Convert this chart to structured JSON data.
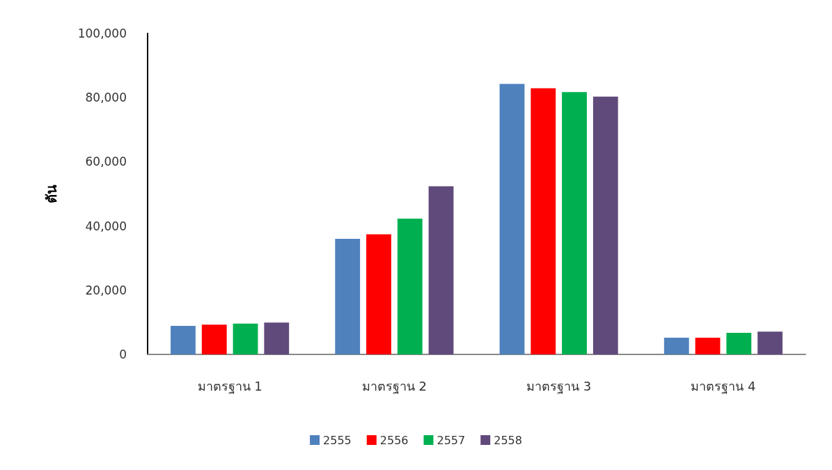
{
  "chart_data": {
    "type": "bar",
    "ylabel": "ตัน",
    "categories": [
      "มาตรฐาน 1",
      "มาตรฐาน 2",
      "มาตรฐาน 3",
      "มาตรฐาน 4"
    ],
    "series": [
      {
        "name": "2555",
        "color": "#4f81bd",
        "values": [
          8900,
          36000,
          84300,
          5200
        ]
      },
      {
        "name": "2556",
        "color": "#ff0000",
        "values": [
          9300,
          37400,
          82900,
          5200
        ]
      },
      {
        "name": "2557",
        "color": "#00b050",
        "values": [
          9600,
          42300,
          81700,
          6700
        ]
      },
      {
        "name": "2558",
        "color": "#604a7b",
        "values": [
          9900,
          52400,
          80300,
          7100
        ]
      }
    ],
    "ylim": [
      0,
      100000
    ],
    "yticks": [
      0,
      {
        "value": 20000,
        "label": "20,000"
      },
      {
        "value": 40000,
        "label": "40,000"
      },
      {
        "value": 60000,
        "label": "60,000"
      },
      {
        "value": 80000,
        "label": "80,000"
      },
      {
        "value": 100000,
        "label": "100,000"
      }
    ],
    "grid": false,
    "legend": "bottom"
  }
}
